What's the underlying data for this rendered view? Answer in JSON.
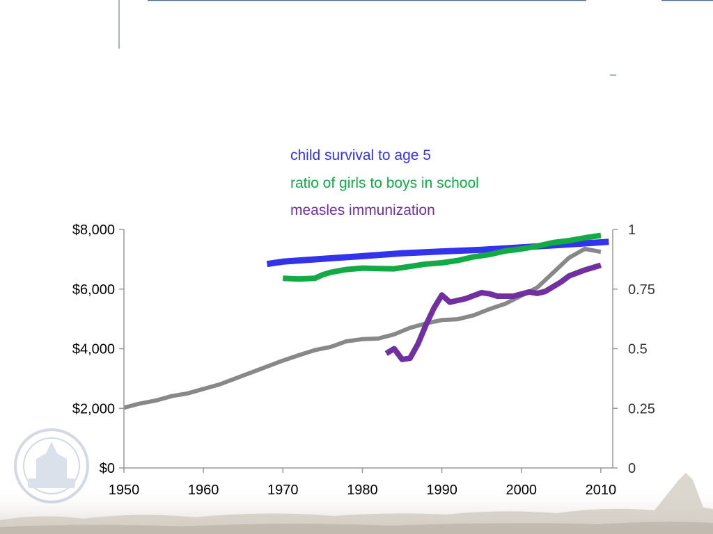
{
  "colors": {
    "child_survival": "#3333ee",
    "girls_boys_ratio": "#11aa44",
    "measles": "#7030a0",
    "gdp": "#888888",
    "frame_line": "#4f6a88",
    "axis": "#999999"
  },
  "decoration": {
    "seal_icon": "city-seal-icon",
    "skyline": "skyline-photo-strip"
  },
  "chart_data": {
    "type": "line",
    "title": "",
    "xlabel": "",
    "ylabel": "",
    "legend_placement": "top-center",
    "grid": false,
    "x_ticks": [
      "1950",
      "1960",
      "1970",
      "1980",
      "1990",
      "2000",
      "2010"
    ],
    "x_range": [
      1950,
      2011.5
    ],
    "y_left_ticks": [
      "$0",
      "$2,000",
      "$4,000",
      "$6,000",
      "$8,000"
    ],
    "y_left_range": [
      0,
      8000
    ],
    "y_right_ticks": [
      "0",
      "0.25",
      "0.5",
      "0.75",
      "1"
    ],
    "y_right_range": [
      0,
      1
    ],
    "legend": [
      {
        "label": "child survival to age 5",
        "color": "#3333ee"
      },
      {
        "label": "ratio of girls to boys in school",
        "color": "#11aa44"
      },
      {
        "label": "measles immunization",
        "color": "#7030a0"
      }
    ],
    "series": [
      {
        "key": "gdp",
        "axis": "left",
        "color": "#888888",
        "x": [
          1950,
          1952,
          1954,
          1956,
          1958,
          1960,
          1962,
          1964,
          1966,
          1968,
          1970,
          1972,
          1974,
          1976,
          1978,
          1980,
          1982,
          1984,
          1986,
          1988,
          1990,
          1992,
          1994,
          1996,
          1998,
          2000,
          2002,
          2004,
          2006,
          2008,
          2010
        ],
        "y": [
          2020,
          2160,
          2260,
          2410,
          2500,
          2650,
          2800,
          3000,
          3200,
          3400,
          3600,
          3780,
          3950,
          4060,
          4250,
          4320,
          4340,
          4480,
          4700,
          4850,
          4960,
          4990,
          5120,
          5330,
          5510,
          5780,
          6050,
          6550,
          7050,
          7350,
          7250
        ]
      },
      {
        "key": "child_survival",
        "axis": "right",
        "color": "#3333ee",
        "x": [
          1968,
          1970,
          1975,
          1980,
          1985,
          1990,
          1995,
          2000,
          2005,
          2011
        ],
        "y": [
          0.855,
          0.865,
          0.877,
          0.888,
          0.9,
          0.908,
          0.915,
          0.925,
          0.935,
          0.948
        ]
      },
      {
        "key": "girls_boys_ratio",
        "axis": "right",
        "color": "#11aa44",
        "x": [
          1970,
          1972,
          1974,
          1975,
          1976,
          1978,
          1980,
          1982,
          1984,
          1986,
          1988,
          1990,
          1992,
          1994,
          1996,
          1998,
          2000,
          2002,
          2004,
          2006,
          2008,
          2010
        ],
        "y": [
          0.795,
          0.792,
          0.795,
          0.81,
          0.82,
          0.832,
          0.838,
          0.836,
          0.835,
          0.845,
          0.855,
          0.86,
          0.87,
          0.885,
          0.895,
          0.91,
          0.918,
          0.93,
          0.945,
          0.953,
          0.965,
          0.975
        ]
      },
      {
        "key": "measles",
        "axis": "right",
        "color": "#7030a0",
        "x": [
          1983,
          1984,
          1985,
          1986,
          1987,
          1988,
          1989,
          1990,
          1991,
          1993,
          1995,
          1996,
          1997,
          1999,
          2001,
          2002,
          2003,
          2005,
          2006,
          2008,
          2010
        ],
        "y": [
          0.48,
          0.5,
          0.455,
          0.46,
          0.52,
          0.6,
          0.67,
          0.725,
          0.695,
          0.71,
          0.735,
          0.73,
          0.72,
          0.72,
          0.738,
          0.732,
          0.74,
          0.78,
          0.805,
          0.83,
          0.85
        ]
      }
    ]
  }
}
